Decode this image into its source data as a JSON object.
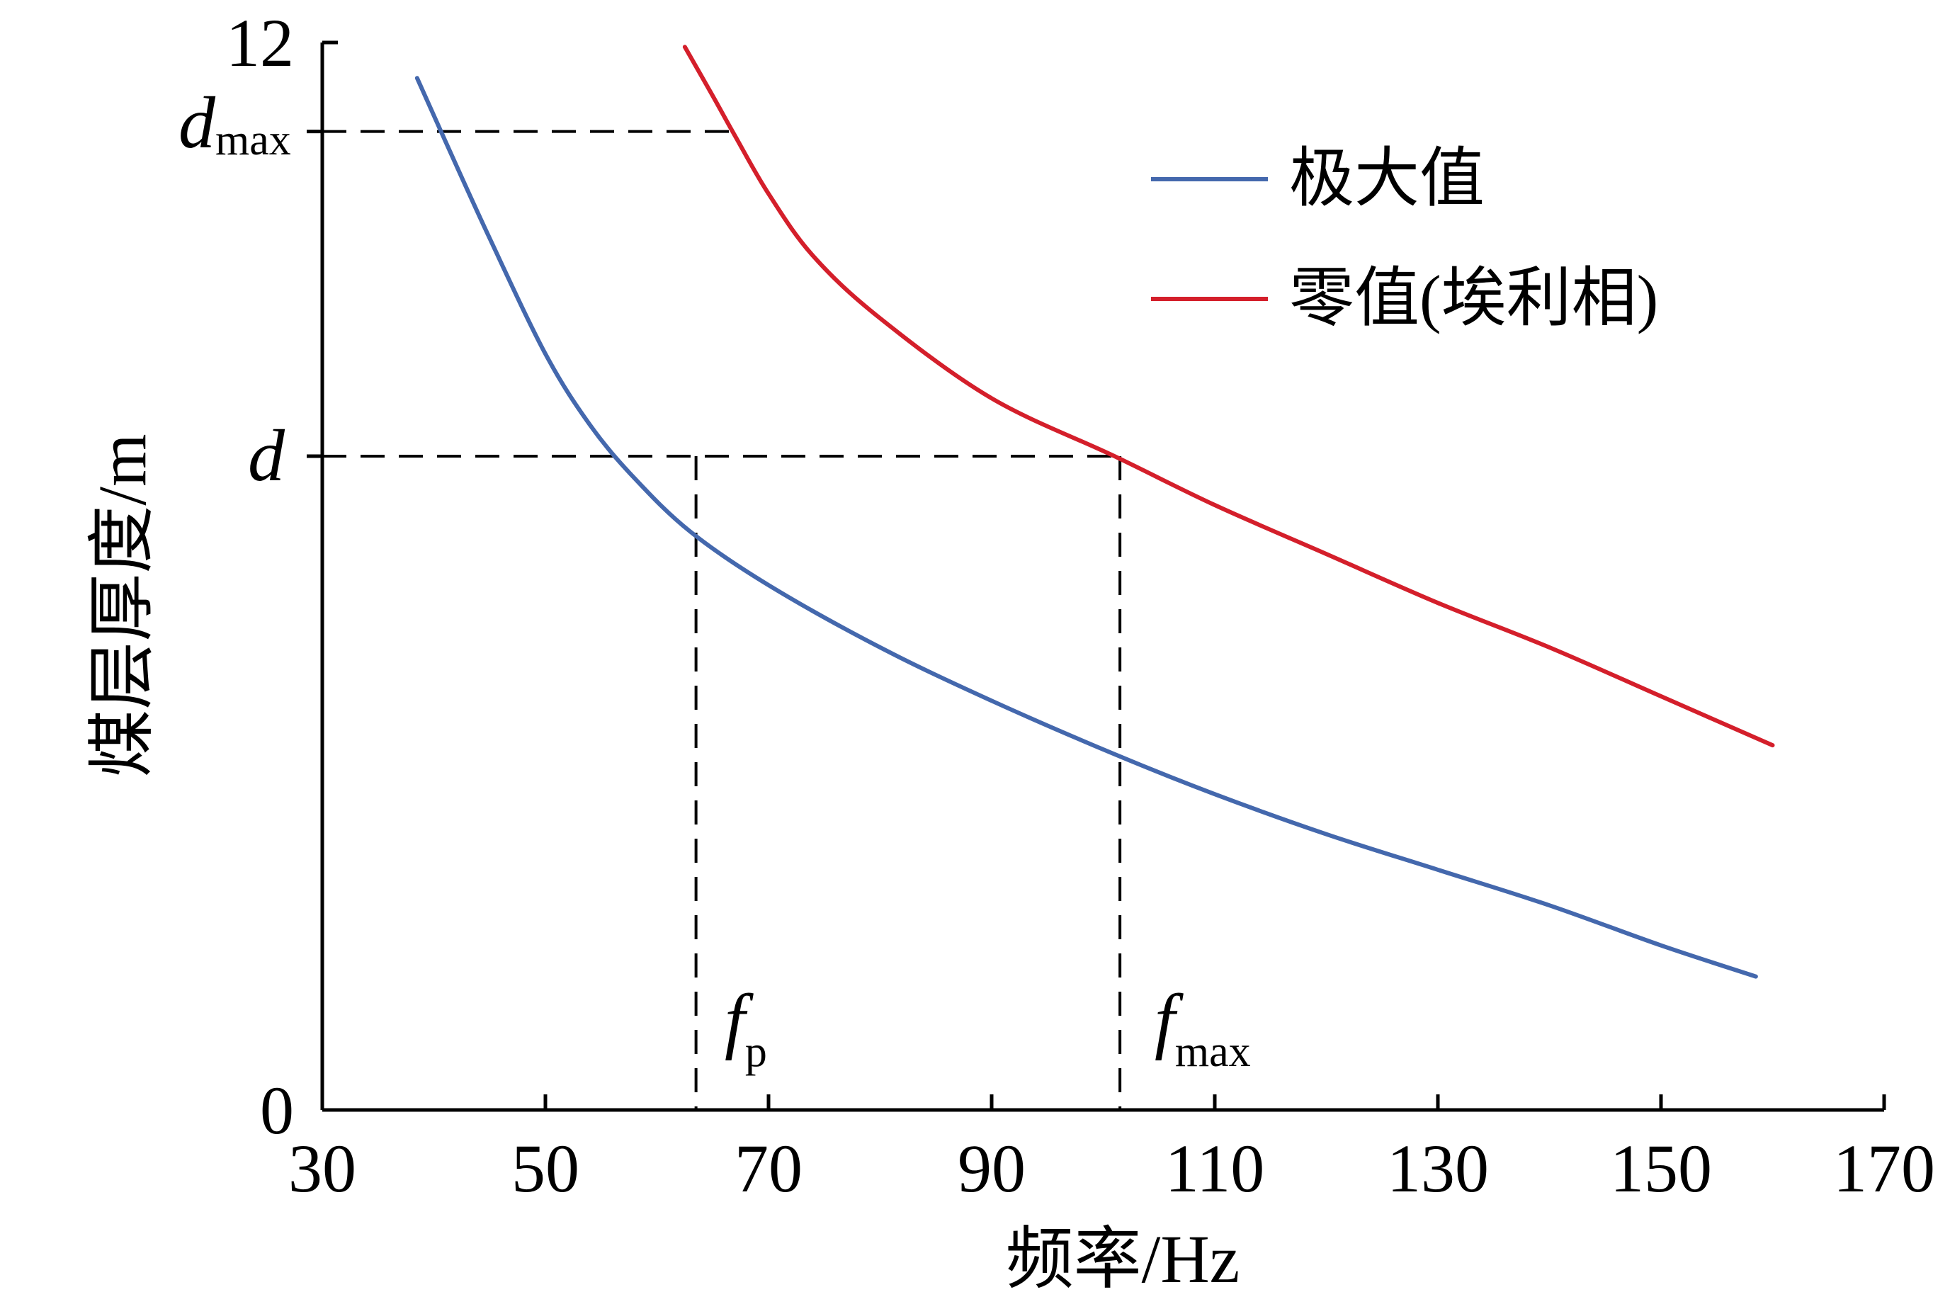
{
  "chart_data": {
    "type": "line",
    "xlabel": "频率/Hz",
    "ylabel": "煤层厚度/m",
    "xlim": [
      30,
      170
    ],
    "ylim": [
      0,
      12
    ],
    "xticks": [
      "30",
      "50",
      "70",
      "90",
      "110",
      "130",
      "150",
      "170"
    ],
    "yticks": [
      "0",
      "12"
    ],
    "grid": false,
    "legend_position": "top-right",
    "series": [
      {
        "name": "极大值",
        "color": "#4468ad",
        "x": [
          38.5,
          41,
          45,
          50,
          54,
          58,
          63,
          70,
          80,
          90,
          101,
          110,
          120,
          130,
          140,
          150,
          158.5
        ],
        "y": [
          11.6,
          10.9,
          9.8,
          8.5,
          7.7,
          7.1,
          6.5,
          5.9,
          5.2,
          4.6,
          4.0,
          3.55,
          3.1,
          2.7,
          2.3,
          1.85,
          1.5
        ]
      },
      {
        "name": "零值(埃利相)",
        "color": "#d41f2b",
        "x": [
          62.5,
          65,
          67,
          70,
          74,
          80,
          90,
          101,
          110,
          120,
          130,
          140,
          150,
          160
        ],
        "y": [
          11.95,
          11.4,
          10.95,
          10.3,
          9.6,
          8.9,
          8.0,
          7.35,
          6.8,
          6.25,
          5.7,
          5.2,
          4.65,
          4.1
        ]
      }
    ],
    "reference_lines": {
      "d_value": 7.35,
      "dmax_value": 11.0,
      "fp_value": 63.5,
      "fmax_value": 101.5
    },
    "annotations": {
      "d": "d",
      "dmax_main": "d",
      "dmax_sub": "max",
      "fp_main": "f",
      "fp_sub": "p",
      "fmax_main": "f",
      "fmax_sub": "max"
    }
  }
}
